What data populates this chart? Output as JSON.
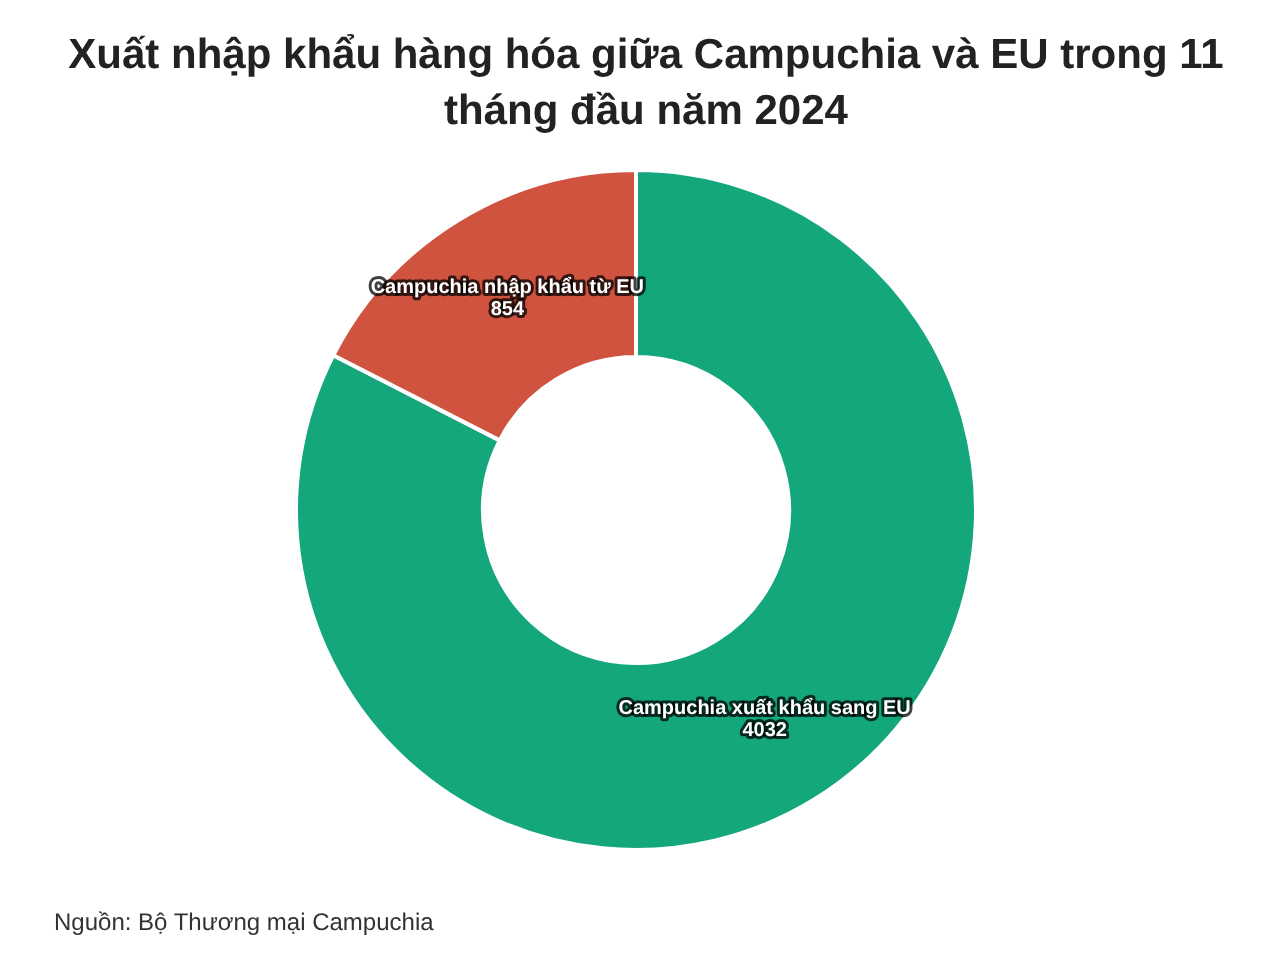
{
  "chart_data": {
    "type": "donut",
    "title": "Xuất nhập khẩu hàng hóa giữa Campuchia và EU trong 11 tháng đầu năm 2024",
    "categories": [
      "Campuchia xuất khẩu sang EU",
      "Campuchia nhập khẩu từ EU"
    ],
    "values": [
      4032,
      854
    ],
    "colors": [
      "#14a77b",
      "#cf533f"
    ],
    "data_labels": true,
    "legend": false,
    "annotations": [
      "Nguồn: Bộ Thương mại Campuchia"
    ]
  }
}
